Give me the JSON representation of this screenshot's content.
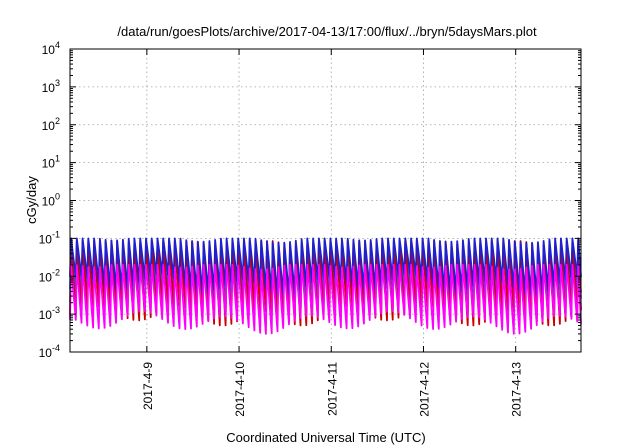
{
  "chart_data": {
    "type": "line",
    "title": "/data/run/goesPlots/archive/2017-04-13/17:00/flux/../bryn/5daysMars.plot",
    "xlabel": "Coordinated Universal Time (UTC)",
    "ylabel": "cGy/day",
    "yscale": "log",
    "ylim": [
      0.0001,
      10000
    ],
    "y_ticks": [
      {
        "base": "10",
        "exp": "-4",
        "value": 0.0001
      },
      {
        "base": "10",
        "exp": "-3",
        "value": 0.001
      },
      {
        "base": "10",
        "exp": "-2",
        "value": 0.01
      },
      {
        "base": "10",
        "exp": "-1",
        "value": 0.1
      },
      {
        "base": "10",
        "exp": "0",
        "value": 1
      },
      {
        "base": "10",
        "exp": "1",
        "value": 10
      },
      {
        "base": "10",
        "exp": "2",
        "value": 100
      },
      {
        "base": "10",
        "exp": "3",
        "value": 1000
      },
      {
        "base": "10",
        "exp": "4",
        "value": 10000
      }
    ],
    "xlim": [
      "2017-04-08 04:00",
      "2017-04-13 17:00"
    ],
    "x_ticks": [
      "2017-4-9",
      "2017-4-10",
      "2017-4-11",
      "2017-4-12",
      "2017-4-13"
    ],
    "x_tick_times": [
      "2017-04-09 00:00",
      "2017-04-10 00:00",
      "2017-04-11 00:00",
      "2017-04-12 00:00",
      "2017-04-13 00:00"
    ],
    "grid": true,
    "legend": "none",
    "series": [
      {
        "color": "#cc0000",
        "peak": 0.085,
        "trough": 0.0009
      },
      {
        "color": "#00a0a0",
        "peak": 0.05,
        "trough": 0.0015
      },
      {
        "color": "#2020cc",
        "peak": 0.1,
        "trough": 0.006
      },
      {
        "color": "#2060ff",
        "peak": 0.06,
        "trough": 0.003
      },
      {
        "color": "#ff00ff",
        "peak": 0.02,
        "trough": 0.0006
      }
    ],
    "cycles_per_day": 16
  }
}
